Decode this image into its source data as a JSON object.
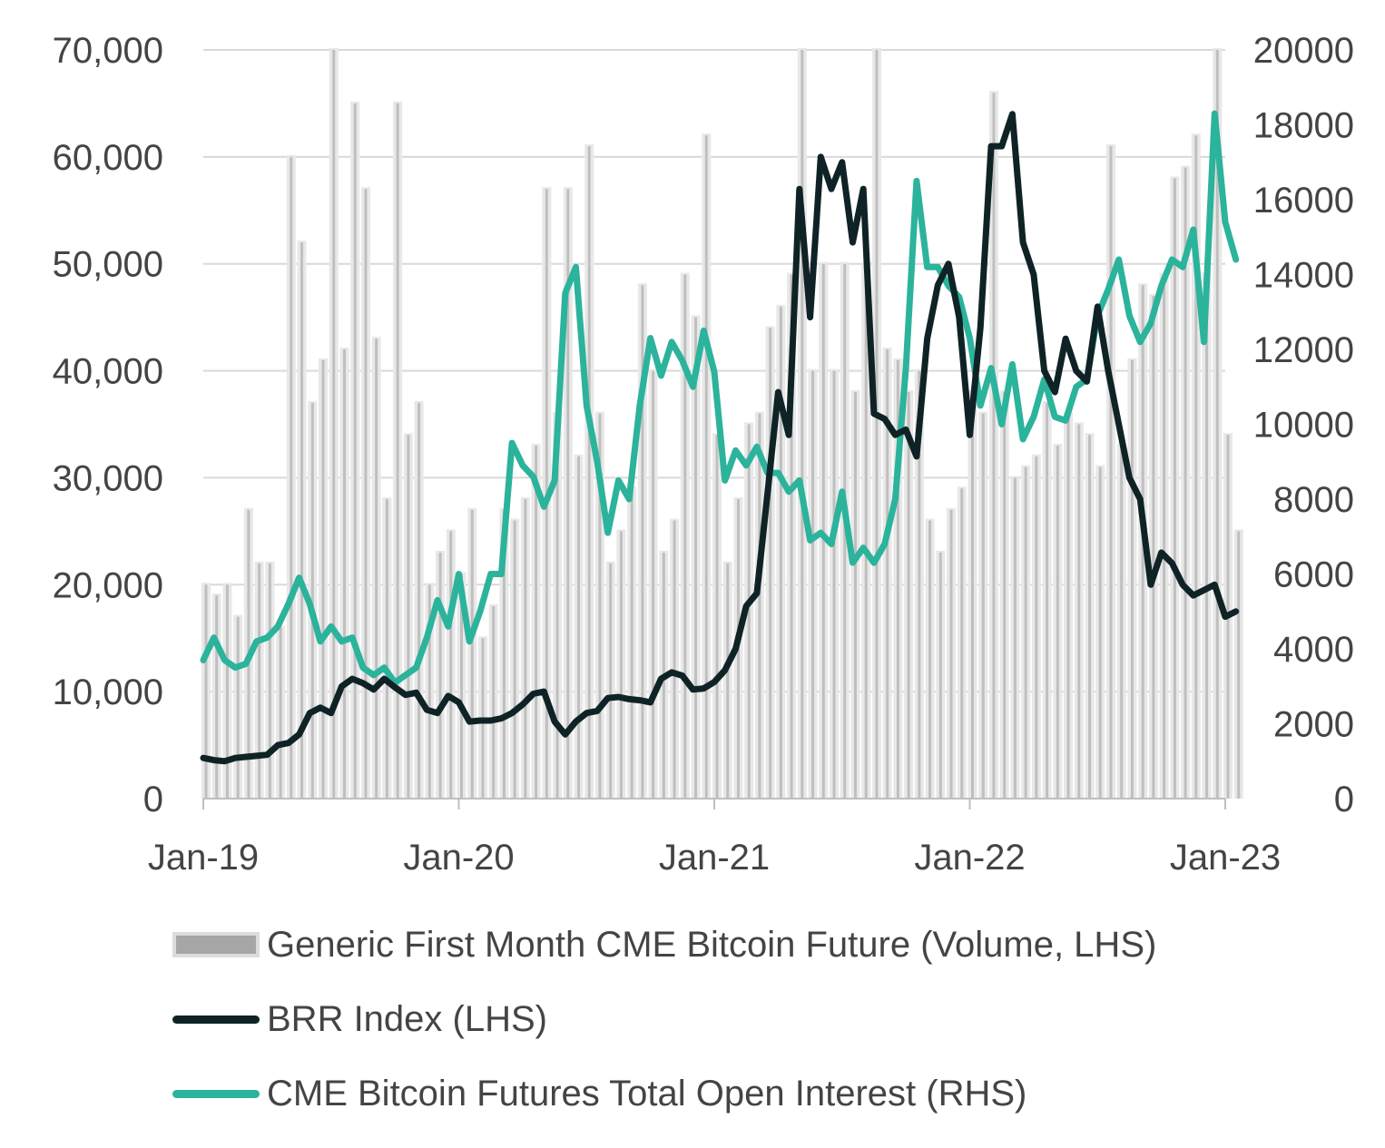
{
  "chart_data": {
    "type": "bar+line",
    "title": "",
    "x_range": [
      "2019-01",
      "2023-01"
    ],
    "x_ticks": [
      "Jan-19",
      "Jan-20",
      "Jan-21",
      "Jan-22",
      "Jan-23"
    ],
    "y_left": {
      "ylim": [
        0,
        70000
      ],
      "ticks": [
        "0",
        "10,000",
        "20,000",
        "30,000",
        "40,000",
        "50,000",
        "60,000",
        "70,000"
      ]
    },
    "y_right": {
      "ylim": [
        0,
        20000
      ],
      "ticks": [
        "0",
        "2000",
        "4000",
        "6000",
        "8000",
        "10000",
        "12000",
        "14000",
        "16000",
        "18000",
        "20000"
      ]
    },
    "grid": "horizontal",
    "legend_position": "bottom",
    "colors": {
      "volume": "#bfbfbf",
      "volume_halo": "#e8e8e8",
      "brr": "#0f2326",
      "oi": "#2bb39c",
      "grid": "#d9d9d9",
      "axis": "#bfbfbf"
    },
    "series": [
      {
        "name": "Generic First Month CME Bitcoin Future (Volume, LHS)",
        "type": "bar",
        "axis": "left",
        "t": [
          0,
          0.5,
          1,
          1.5,
          2,
          2.5,
          3,
          3.5,
          4,
          4.5,
          5,
          5.5,
          6,
          6.5,
          7,
          7.5,
          8,
          8.5,
          9,
          9.5,
          10,
          10.5,
          11,
          11.5,
          12,
          12.5,
          13,
          13.5,
          14,
          14.5,
          15,
          15.5,
          16,
          16.5,
          17,
          17.5,
          18,
          18.5,
          19,
          19.5,
          20,
          20.5,
          21,
          21.5,
          22,
          22.5,
          23,
          23.5,
          24,
          24.5,
          25,
          25.5,
          26,
          26.5,
          27,
          27.5,
          28,
          28.5,
          29,
          29.5,
          30,
          30.5,
          31,
          31.5,
          32,
          32.5,
          33,
          33.5,
          34,
          34.5,
          35,
          35.5,
          36,
          36.5,
          37,
          37.5,
          38,
          38.5,
          39,
          39.5,
          40,
          40.5,
          41,
          41.5,
          42,
          42.5,
          43,
          43.5,
          44,
          44.5,
          45,
          45.5,
          46,
          46.5,
          47,
          47.5,
          48,
          48.5
        ],
        "values": [
          20000,
          19000,
          20000,
          17000,
          27000,
          22000,
          22000,
          16000,
          60000,
          52000,
          37000,
          41000,
          70000,
          42000,
          65000,
          57000,
          43000,
          28000,
          65000,
          34000,
          37000,
          20000,
          23000,
          25000,
          21000,
          27000,
          15000,
          18000,
          27000,
          26000,
          28000,
          33000,
          57000,
          36000,
          57000,
          32000,
          61000,
          36000,
          22000,
          25000,
          29000,
          48000,
          40000,
          23000,
          26000,
          49000,
          45000,
          62000,
          34000,
          22000,
          28000,
          35000,
          36000,
          44000,
          46000,
          49000,
          70000,
          40000,
          50000,
          40000,
          50000,
          38000,
          50000,
          70000,
          42000,
          41000,
          38000,
          40000,
          26000,
          23000,
          27000,
          29000,
          38000,
          36000,
          66000,
          38000,
          30000,
          31000,
          32000,
          37000,
          33000,
          36000,
          35000,
          34000,
          31000,
          61000,
          33000,
          41000,
          48000,
          47000,
          49000,
          58000,
          59000,
          62000,
          49000,
          70000,
          34000,
          25000
        ]
      },
      {
        "name": "BRR Index (LHS)",
        "type": "line",
        "axis": "left",
        "t": [
          0,
          0.5,
          1,
          1.5,
          2,
          2.5,
          3,
          3.5,
          4,
          4.5,
          5,
          5.5,
          6,
          6.5,
          7,
          7.5,
          8,
          8.5,
          9,
          9.5,
          10,
          10.5,
          11,
          11.5,
          12,
          12.5,
          13,
          13.5,
          14,
          14.5,
          15,
          15.5,
          16,
          16.5,
          17,
          17.5,
          18,
          18.5,
          19,
          19.5,
          20,
          20.5,
          21,
          21.5,
          22,
          22.5,
          23,
          23.5,
          24,
          24.5,
          25,
          25.5,
          26,
          26.5,
          27,
          27.5,
          28,
          28.5,
          29,
          29.5,
          30,
          30.5,
          31,
          31.5,
          32,
          32.5,
          33,
          33.5,
          34,
          34.5,
          35,
          35.5,
          36,
          36.5,
          37,
          37.5,
          38,
          38.5,
          39,
          39.5,
          40,
          40.5,
          41,
          41.5,
          42,
          42.5,
          43,
          43.5,
          44,
          44.5,
          45,
          45.5,
          46,
          46.5,
          47,
          47.5,
          48,
          48.5
        ],
        "values": [
          3800,
          3600,
          3500,
          3800,
          3900,
          4000,
          4100,
          5000,
          5200,
          6000,
          8000,
          8500,
          8000,
          10500,
          11200,
          10800,
          10200,
          11200,
          10400,
          9700,
          9900,
          8300,
          8000,
          9600,
          9000,
          7200,
          7300,
          7300,
          7500,
          8000,
          8800,
          9800,
          10000,
          7200,
          6000,
          7200,
          8000,
          8200,
          9400,
          9500,
          9300,
          9200,
          9000,
          11200,
          11800,
          11500,
          10200,
          10300,
          10900,
          12000,
          14000,
          18000,
          19200,
          28500,
          38000,
          34000,
          57000,
          45000,
          60000,
          57000,
          59500,
          52000,
          57000,
          36000,
          35500,
          34000,
          34500,
          32000,
          43000,
          48000,
          50000,
          45000,
          34000,
          44000,
          61000,
          61000,
          64000,
          52000,
          49000,
          40000,
          38000,
          43000,
          40000,
          39000,
          46000,
          40000,
          35000,
          30000,
          28000,
          20000,
          23000,
          22000,
          20000,
          19000,
          19500,
          20000,
          17000,
          17500
        ]
      },
      {
        "name": "CME Bitcoin Futures Total Open Interest (RHS)",
        "type": "line",
        "axis": "right",
        "t": [
          0,
          0.5,
          1,
          1.5,
          2,
          2.5,
          3,
          3.5,
          4,
          4.5,
          5,
          5.5,
          6,
          6.5,
          7,
          7.5,
          8,
          8.5,
          9,
          9.5,
          10,
          10.5,
          11,
          11.5,
          12,
          12.5,
          13,
          13.5,
          14,
          14.5,
          15,
          15.5,
          16,
          16.5,
          17,
          17.5,
          18,
          18.5,
          19,
          19.5,
          20,
          20.5,
          21,
          21.5,
          22,
          22.5,
          23,
          23.5,
          24,
          24.5,
          25,
          25.5,
          26,
          26.5,
          27,
          27.5,
          28,
          28.5,
          29,
          29.5,
          30,
          30.5,
          31,
          31.5,
          32,
          32.5,
          33,
          33.5,
          34,
          34.5,
          35,
          35.5,
          36,
          36.5,
          37,
          37.5,
          38,
          38.5,
          39,
          39.5,
          40,
          40.5,
          41,
          41.5,
          42,
          42.5,
          43,
          43.5,
          44,
          44.5,
          45,
          45.5,
          46,
          46.5,
          47,
          47.5,
          48,
          48.5
        ],
        "values": [
          3700,
          4300,
          3700,
          3500,
          3600,
          4200,
          4300,
          4600,
          5200,
          5900,
          5200,
          4200,
          4600,
          4200,
          4300,
          3500,
          3300,
          3500,
          3100,
          3300,
          3500,
          4300,
          5300,
          4600,
          6000,
          4200,
          5000,
          6000,
          6000,
          9500,
          8900,
          8600,
          7800,
          8500,
          13500,
          14200,
          10500,
          9000,
          7100,
          8500,
          8000,
          10500,
          12300,
          11300,
          12200,
          11700,
          11000,
          12500,
          11400,
          8500,
          9300,
          8900,
          9400,
          8700,
          8700,
          8200,
          8500,
          6900,
          7100,
          6800,
          8200,
          6300,
          6700,
          6300,
          6800,
          8000,
          11500,
          16500,
          14200,
          14200,
          13700,
          13400,
          12300,
          10500,
          11500,
          10000,
          11600,
          9600,
          10200,
          11200,
          10200,
          10100,
          11000,
          11200,
          12900,
          13600,
          14400,
          12900,
          12200,
          12700,
          13700,
          14400,
          14200,
          15200,
          12200,
          18300,
          15400,
          14400
        ]
      }
    ],
    "legend": [
      "Generic First Month CME Bitcoin Future (Volume, LHS)",
      "BRR Index (LHS)",
      "CME Bitcoin Futures Total Open Interest (RHS)"
    ]
  }
}
